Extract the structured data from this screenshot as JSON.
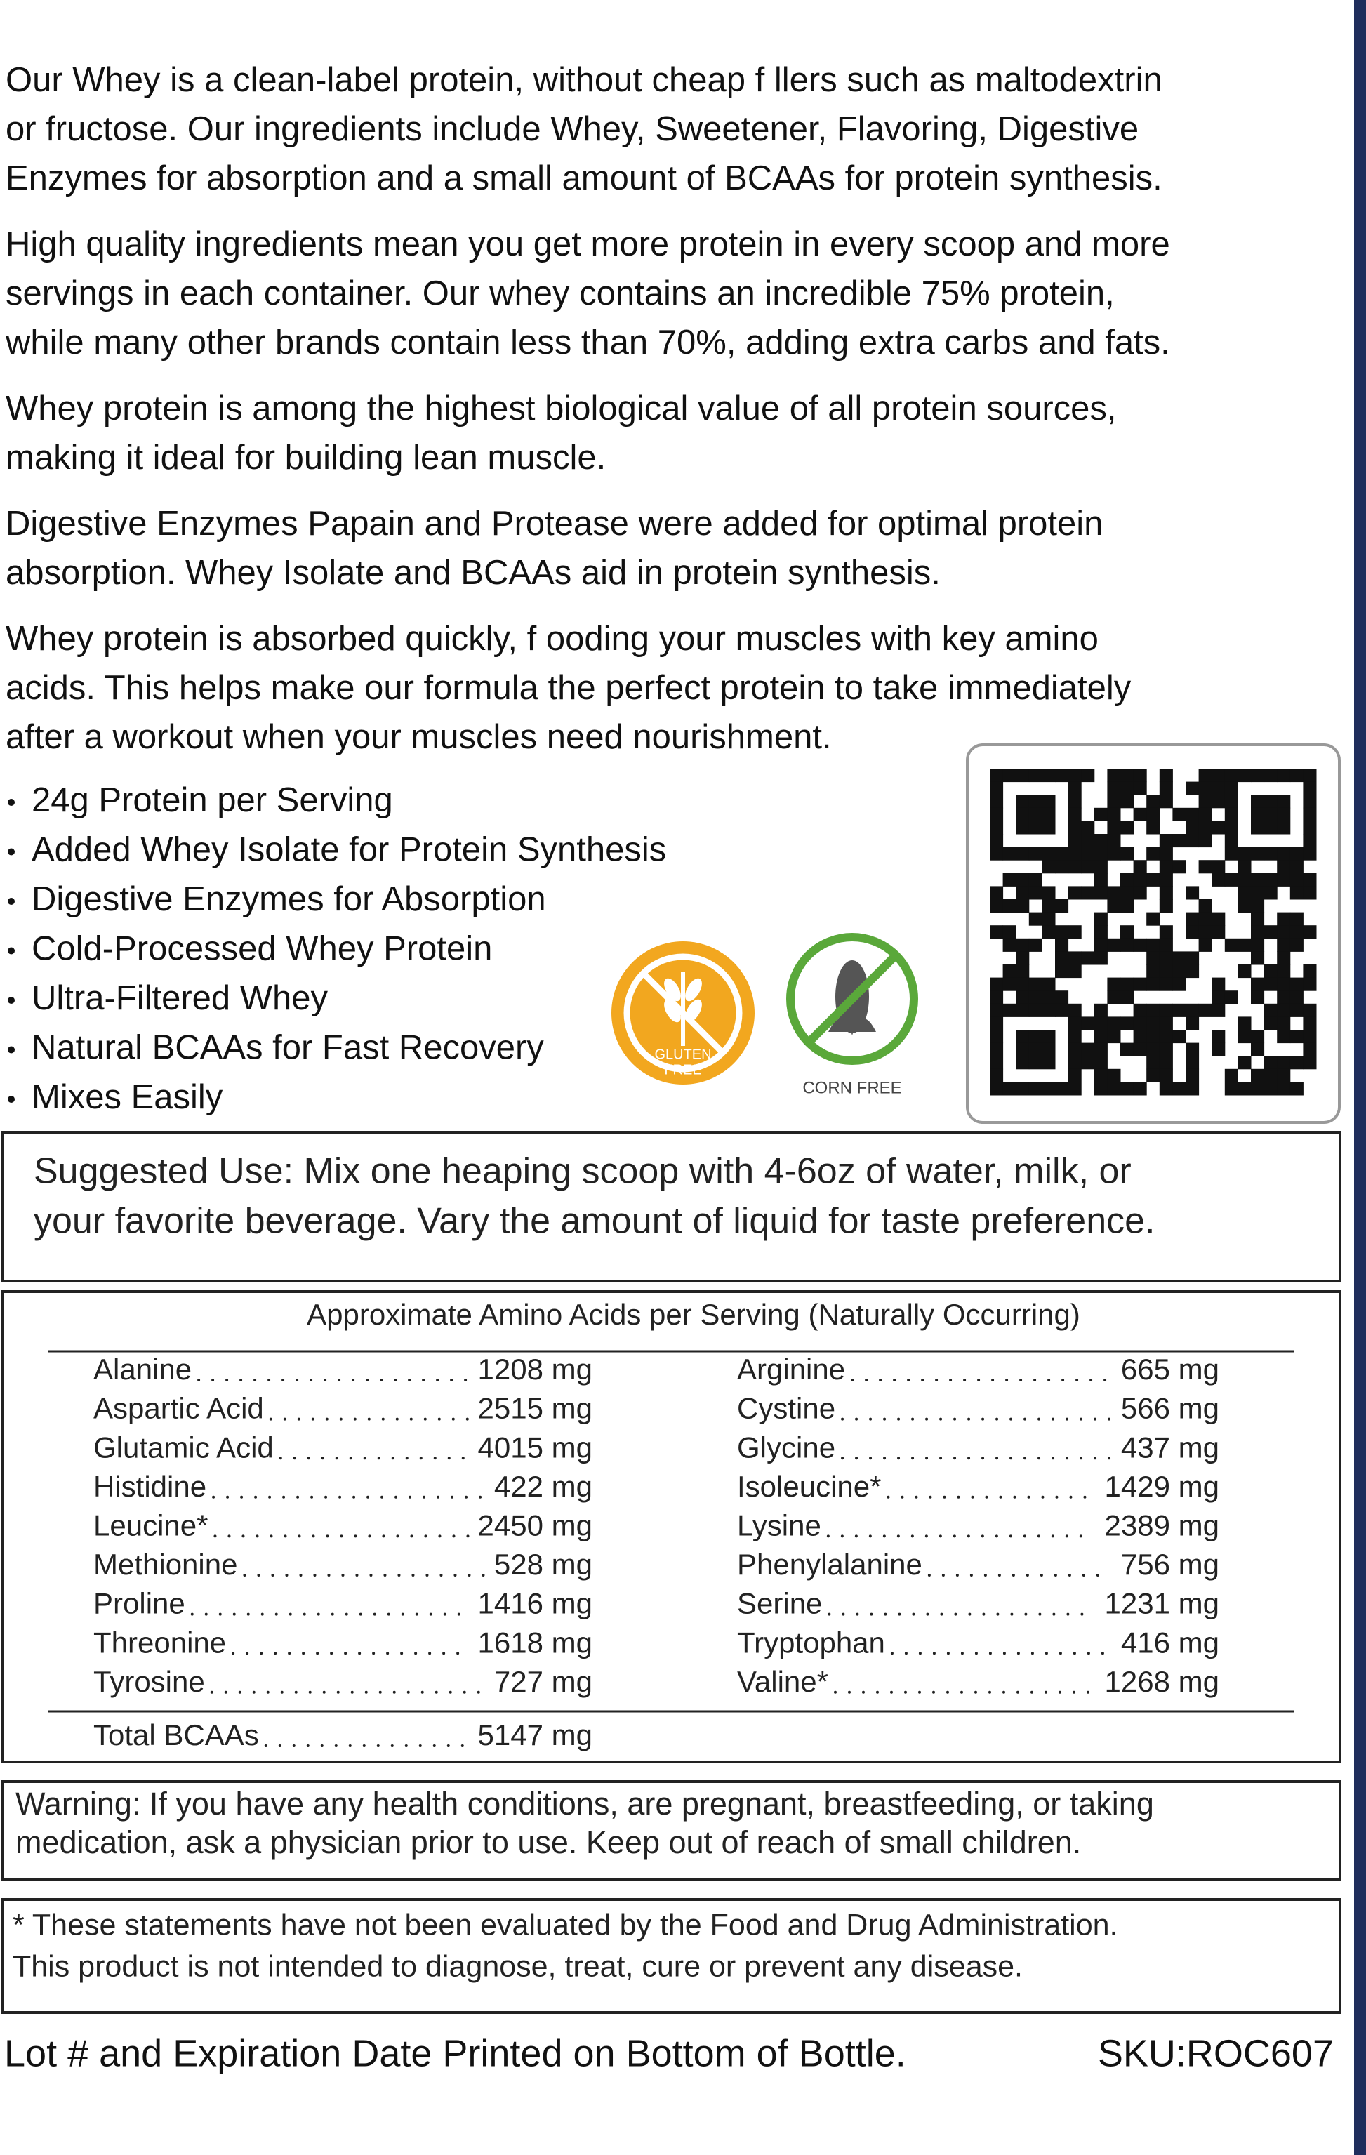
{
  "description": {
    "paragraphs": [
      [
        "Our Whey is a clean-label protein, without cheap f llers such as maltodextrin",
        "or fructose. Our ingredients include Whey, Sweetener, Flavoring, Digestive",
        "Enzymes for absorption and a small amount of BCAAs for protein synthesis."
      ],
      [
        "High quality ingredients mean you get more protein in every scoop and more",
        "servings in each container. Our whey contains an incredible 75% protein,",
        "while many other brands contain less than 70%, adding extra carbs and fats."
      ],
      [
        "Whey protein is among the highest biological value of all protein sources,",
        "making it ideal for building lean muscle."
      ],
      [
        "Digestive Enzymes Papain and Protease were added for optimal protein",
        "absorption. Whey Isolate and BCAAs aid in protein synthesis."
      ],
      [
        "Whey protein is absorbed quickly, f ooding your muscles with key amino",
        "acids. This helps make our formula the perfect protein to take immediately",
        "after a workout when your muscles need nourishment."
      ]
    ]
  },
  "features": [
    "24g Protein per Serving",
    "Added Whey Isolate for Protein Synthesis",
    "Digestive Enzymes for Absorption",
    "Cold-Processed Whey Protein",
    "Ultra-Filtered Whey",
    "Natural BCAAs for Fast Recovery",
    "Mixes Easily"
  ],
  "badges": {
    "gluten_free": [
      "GLUTEN",
      "FREE"
    ],
    "corn_free": "CORN FREE"
  },
  "suggested_use": [
    "Suggested Use: Mix one heaping scoop with 4-6oz of water, milk, or",
    "your favorite beverage. Vary the amount of liquid for taste preference."
  ],
  "amino_acids": {
    "title": "Approximate Amino Acids per Serving (Naturally Occurring)",
    "left": [
      {
        "name": "Alanine",
        "amount": "1208 mg"
      },
      {
        "name": "Aspartic Acid",
        "amount": "2515 mg"
      },
      {
        "name": "Glutamic Acid",
        "amount": "4015 mg"
      },
      {
        "name": "Histidine",
        "amount": "422 mg"
      },
      {
        "name": "Leucine*",
        "amount": "2450 mg"
      },
      {
        "name": "Methionine",
        "amount": "528 mg"
      },
      {
        "name": "Proline",
        "amount": "1416 mg"
      },
      {
        "name": "Threonine",
        "amount": "1618 mg"
      },
      {
        "name": "Tyrosine",
        "amount": "727 mg"
      }
    ],
    "right": [
      {
        "name": "Arginine",
        "amount": "665 mg"
      },
      {
        "name": "Cystine",
        "amount": "566 mg"
      },
      {
        "name": "Glycine",
        "amount": "437 mg"
      },
      {
        "name": "Isoleucine*",
        "amount": "1429 mg"
      },
      {
        "name": "Lysine",
        "amount": "2389 mg"
      },
      {
        "name": "Phenylalanine",
        "amount": "756 mg"
      },
      {
        "name": "Serine",
        "amount": "1231 mg"
      },
      {
        "name": "Tryptophan",
        "amount": "416 mg"
      },
      {
        "name": "Valine*",
        "amount": "1268 mg"
      }
    ],
    "total": {
      "name": "Total BCAAs",
      "amount": "5147 mg"
    }
  },
  "warning": [
    "Warning: If you have any health conditions, are pregnant, breastfeeding, or taking",
    "medication, ask a physician prior to use. Keep out of reach of small children."
  ],
  "disclaimer": [
    "* These statements have not been evaluated by the Food and Drug Administration.",
    "This product is not intended to diagnose, treat, cure or prevent any disease."
  ],
  "footer": {
    "lot": "Lot # and Expiration Date Printed on Bottom of Bottle.",
    "sku": "SKU:ROC607"
  }
}
